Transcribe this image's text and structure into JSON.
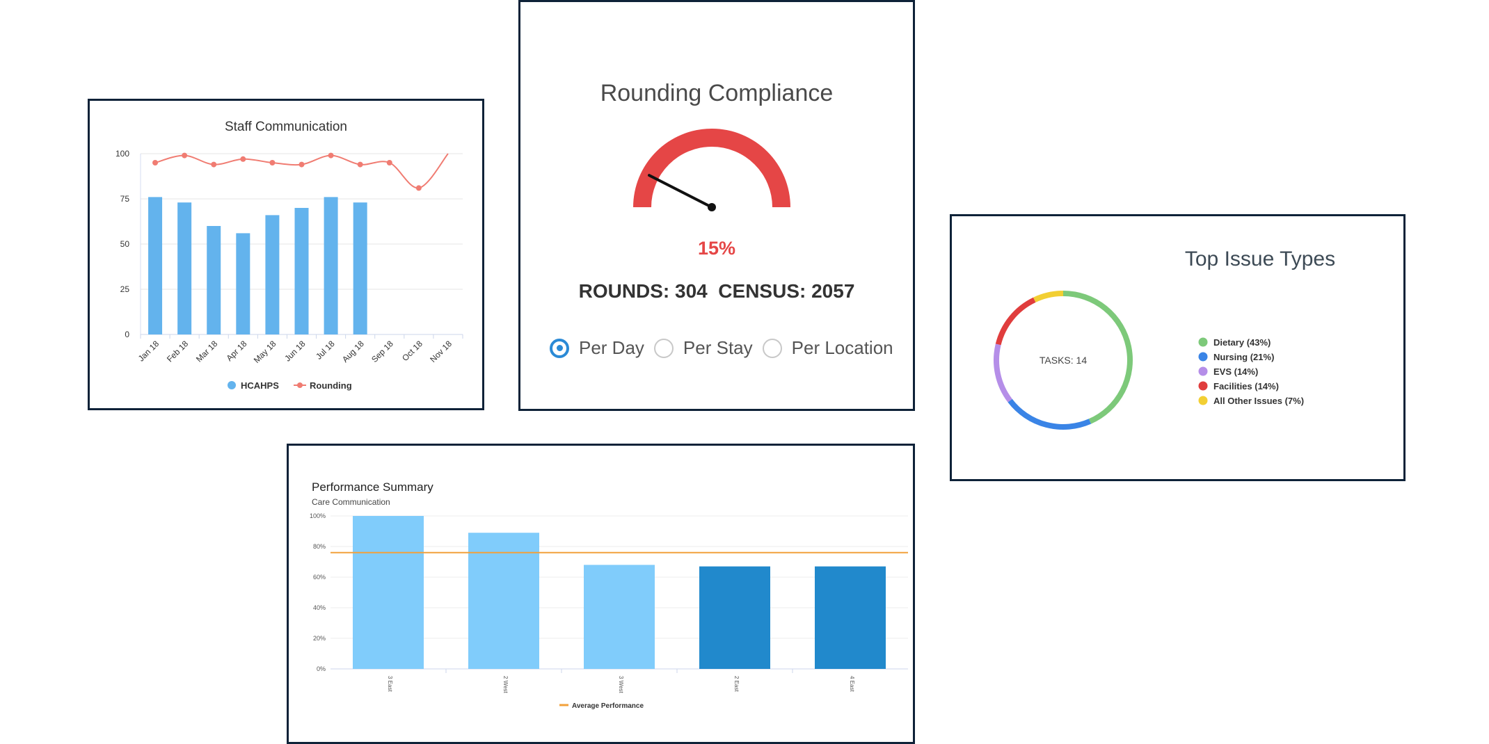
{
  "colors": {
    "border": "#0e2238",
    "hcahps_bar": "#63b3ed",
    "rounding_line": "#f07c72",
    "gauge": "#e54646",
    "radio_selected": "#2b8ad6",
    "dietary": "#7dc97a",
    "nursing": "#3a84e6",
    "evs": "#b58ee8",
    "facilities": "#e03d3d",
    "other": "#f2cf33",
    "perf_light": "#80ccfb",
    "perf_dark": "#2189cc",
    "average_line": "#f2a03a"
  },
  "staff": {
    "title": "Staff Communication"
  },
  "rounding": {
    "title": "Rounding Compliance",
    "percent_text": "15%",
    "percent_value": 15,
    "stats_text": "ROUNDS: 304  CENSUS: 2057",
    "options": [
      {
        "label": "Per Day",
        "selected": true
      },
      {
        "label": "Per Stay",
        "selected": false
      },
      {
        "label": "Per Location",
        "selected": false
      }
    ]
  },
  "issues": {
    "title": "Top Issue Types",
    "center_text": "TASKS: 14"
  },
  "performance": {
    "title": "Performance Summary",
    "subtitle": "Care Communication"
  },
  "chart_data": [
    {
      "type": "bar",
      "title": "Staff Communication",
      "categories": [
        "Jan 18",
        "Feb 18",
        "Mar 18",
        "Apr 18",
        "May 18",
        "Jun 18",
        "Jul 18",
        "Aug 18",
        "Sep 18",
        "Oct 18",
        "Nov 18"
      ],
      "series": [
        {
          "name": "HCAHPS",
          "type": "bar",
          "values": [
            76,
            73,
            60,
            56,
            66,
            70,
            76,
            73,
            null,
            null,
            null
          ]
        },
        {
          "name": "Rounding",
          "type": "line",
          "values": [
            95,
            99,
            94,
            97,
            95,
            94,
            99,
            94,
            95,
            81,
            100
          ]
        }
      ],
      "yticks": [
        0,
        25,
        50,
        75,
        100
      ],
      "ylim": [
        0,
        100
      ],
      "legend": "bottom-center"
    },
    {
      "type": "pie",
      "title": "Top Issue Types",
      "labels": [
        "Dietary (43%)",
        "Nursing (21%)",
        "EVS (14%)",
        "Facilities (14%)",
        "All Other Issues (7%)"
      ],
      "values": [
        43,
        21,
        14,
        14,
        7
      ],
      "legend": "right"
    },
    {
      "type": "bar",
      "title": "Performance Summary",
      "subtitle": "Care Communication",
      "categories": [
        "3 East",
        "2 West",
        "3 West",
        "2 East",
        "4 East"
      ],
      "values": [
        100,
        89,
        68,
        67,
        67
      ],
      "highlight": [
        false,
        false,
        false,
        true,
        true
      ],
      "yticks": [
        "0%",
        "20%",
        "40%",
        "60%",
        "80%",
        "100%"
      ],
      "ylim": [
        0,
        100
      ],
      "reference_line": {
        "name": "Average Performance",
        "value": 76
      },
      "legend": "bottom-center"
    }
  ]
}
